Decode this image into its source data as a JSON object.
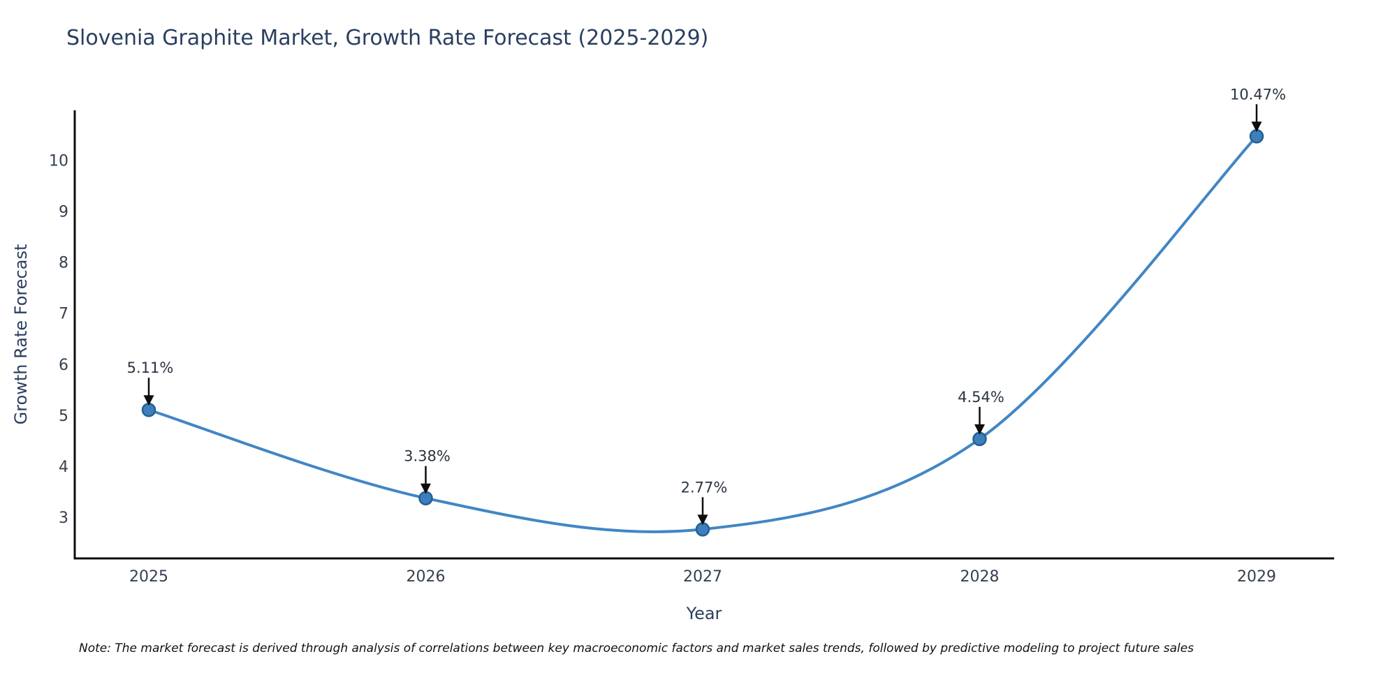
{
  "chart": {
    "title": "Slovenia Graphite Market, Growth Rate Forecast (2025-2029)",
    "xlabel": "Year",
    "ylabel": "Growth Rate Forecast",
    "note": "Note: The market forecast is derived through analysis of correlations between key macroeconomic factors and market sales trends, followed by predictive modeling to project future sales",
    "colors": {
      "line": "#4186c5",
      "marker_fill": "#3d7fbe",
      "marker_edge": "#23608f",
      "arrow": "#0d0d0d",
      "spine": "#0d0d0d",
      "title_text": "#2a3f5f",
      "tick_text": "#36404e",
      "annotation_text": "#2b3440"
    }
  },
  "chart_data": {
    "type": "line",
    "title": "Slovenia Graphite Market, Growth Rate Forecast (2025-2029)",
    "xlabel": "Year",
    "ylabel": "Growth Rate Forecast",
    "x": [
      2025,
      2026,
      2027,
      2028,
      2029
    ],
    "values": [
      5.11,
      3.38,
      2.77,
      4.54,
      10.47
    ],
    "point_labels": [
      "5.11%",
      "3.38%",
      "2.77%",
      "4.54%",
      "10.47%"
    ],
    "yticks": [
      3,
      4,
      5,
      6,
      7,
      8,
      9,
      10
    ],
    "ylim": [
      2.2,
      10.98
    ],
    "line_shape": "spline",
    "grid": false,
    "legend_position": "none",
    "annotation_note": "Note: The market forecast is derived through analysis of correlations between key macroeconomic factors and market sales trends, followed by predictive modeling to project future sales"
  }
}
